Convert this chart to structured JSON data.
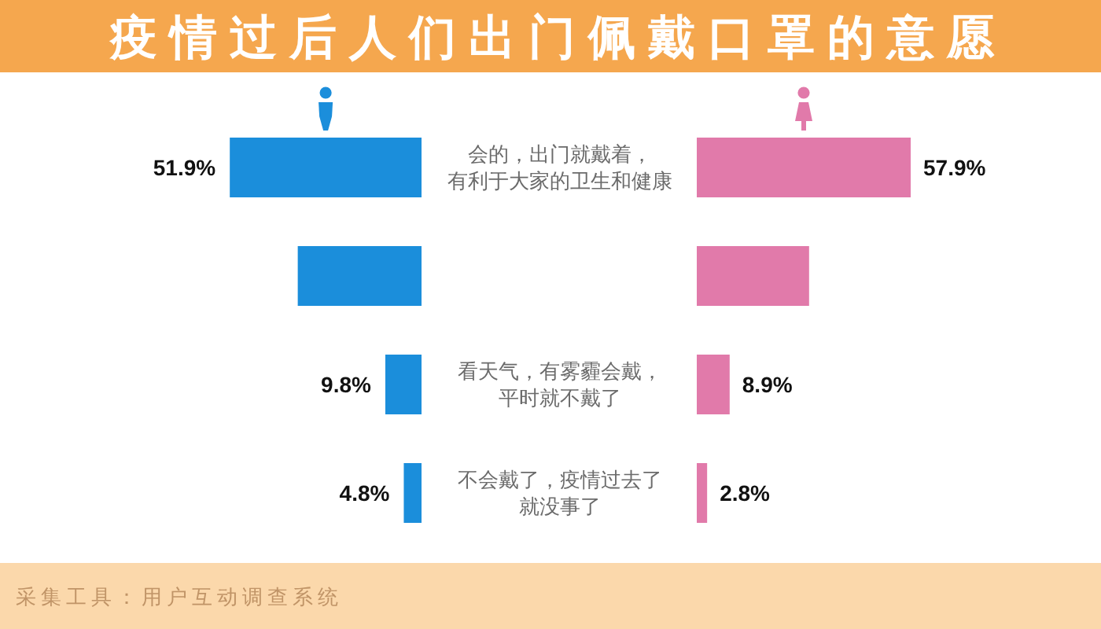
{
  "chart_data": [
    {
      "type": "bar",
      "orientation": "horizontal",
      "title": "疫情过后人们出门佩戴口罩的意愿",
      "categories": [
        "会的，出门就戴着，有利于大家的卫生和健康",
        null,
        "看天气，有雾霾会戴，平时就不戴了",
        "不会戴了，疫情过去了就没事了"
      ],
      "series": [
        {
          "color": "#1b8edb",
          "values": [
            51.9,
            33.5,
            9.8,
            4.8
          ],
          "value_labels": [
            "51.9%",
            null,
            "9.8%",
            "4.8%"
          ]
        }
      ],
      "annotations": [
        "采集工具：用户互动调查系统"
      ]
    },
    {
      "type": "bar",
      "orientation": "horizontal",
      "categories": [
        null,
        null,
        null,
        null
      ],
      "series": [
        {
          "color": "#e17aaa",
          "values": [
            57.9,
            30.4,
            8.9,
            2.8
          ],
          "value_labels": [
            "57.9%",
            null,
            "8.9%",
            "2.8%"
          ]
        }
      ]
    }
  ]
}
